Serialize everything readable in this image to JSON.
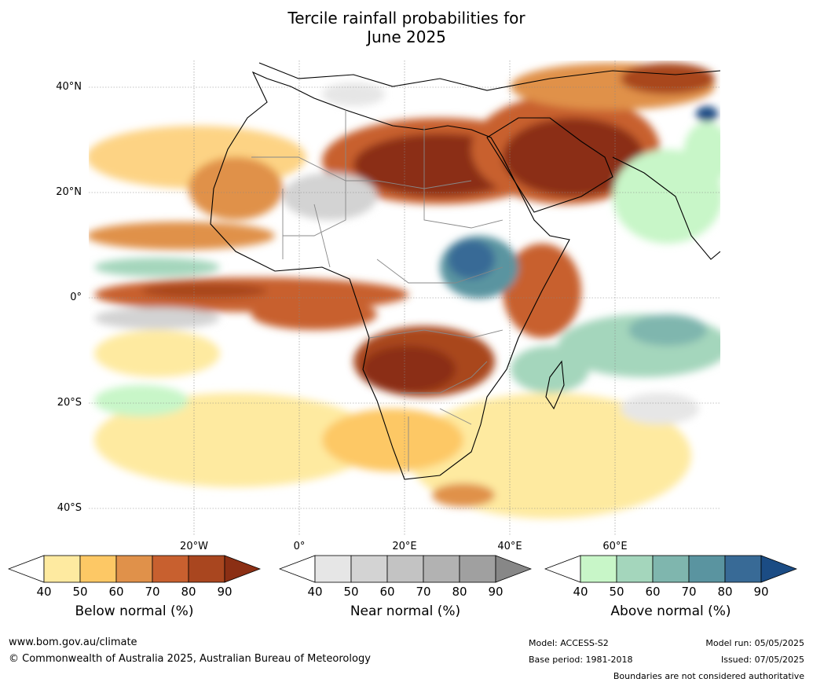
{
  "title": {
    "line1": "Tercile rainfall probabilities for",
    "line2": "June 2025"
  },
  "map": {
    "lat_labels": [
      "40°N",
      "20°N",
      "0°",
      "20°S",
      "40°S"
    ],
    "lon_labels": [
      "20°W",
      "0°",
      "20°E",
      "40°E",
      "60°E"
    ],
    "regions": [
      {
        "region": "Sahara / Egypt / Arabian Peninsula",
        "category": "below",
        "max_level": 90
      },
      {
        "region": "Central-southern Africa (Angola, Zambia, DRC south)",
        "category": "below",
        "max_level": 90
      },
      {
        "region": "Equatorial Atlantic band",
        "category": "below",
        "max_level": 80
      },
      {
        "region": "Ethiopia / South Sudan",
        "category": "above",
        "max_level": 80
      },
      {
        "region": "Northern Pakistan",
        "category": "above",
        "max_level": 90
      },
      {
        "region": "Western Indian Ocean",
        "category": "above",
        "max_level": 70
      }
    ]
  },
  "colorbars": [
    {
      "label": "Below normal (%)",
      "ticks": [
        "40",
        "50",
        "60",
        "70",
        "80",
        "90"
      ],
      "colors": [
        "#ffffff",
        "#feeaa0",
        "#fdc865",
        "#e0914a",
        "#c8602f",
        "#a9461f",
        "#8b2f14"
      ]
    },
    {
      "label": "Near normal (%)",
      "ticks": [
        "40",
        "50",
        "60",
        "70",
        "80",
        "90"
      ],
      "colors": [
        "#ffffff",
        "#e6e6e6",
        "#d3d3d3",
        "#c3c3c3",
        "#b2b2b2",
        "#a0a0a0",
        "#878787"
      ]
    },
    {
      "label": "Above normal (%)",
      "ticks": [
        "40",
        "50",
        "60",
        "70",
        "80",
        "90"
      ],
      "colors": [
        "#ffffff",
        "#c8f6c8",
        "#a4d6bc",
        "#7fb6ae",
        "#5a94a0",
        "#386a96",
        "#1b4c84"
      ]
    }
  ],
  "footer": {
    "url": "www.bom.gov.au/climate",
    "copyright": "© Commonwealth of Australia 2025, Australian Bureau of Meteorology",
    "model": "Model: ACCESS-S2",
    "base_period": "Base period: 1981-2018",
    "model_run": "Model run: 05/05/2025",
    "issued": "Issued: 07/05/2025",
    "disclaimer": "Boundaries are not considered authoritative"
  }
}
